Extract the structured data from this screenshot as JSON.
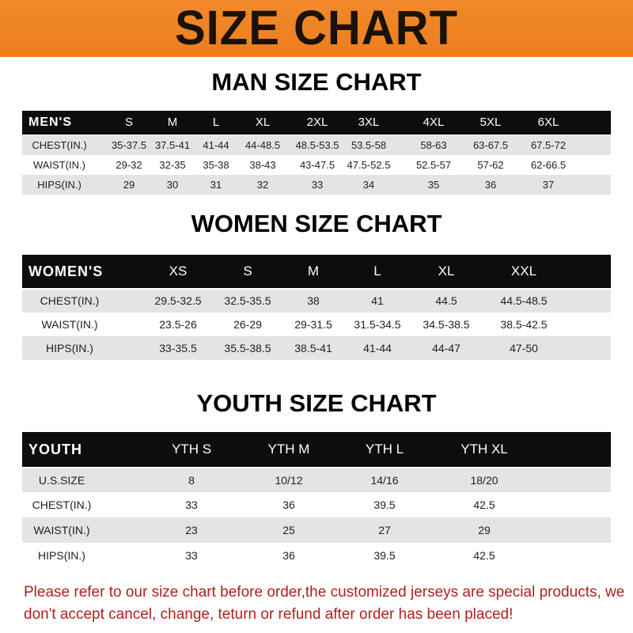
{
  "title": "SIZE CHART",
  "tables": [
    {
      "title": "MAN SIZE CHART",
      "header": [
        "MEN'S",
        "S",
        "M",
        "L",
        "XL",
        "2XL",
        "3XL",
        "4XL",
        "5XL",
        "6XL"
      ],
      "rows": [
        [
          "CHEST(IN.)",
          "35-37.5",
          "37.5-41",
          "41-44",
          "44-48.5",
          "48.5-53.5",
          "53.5-58",
          "58-63",
          "63-67.5",
          "67.5-72"
        ],
        [
          "WAIST(IN.)",
          "29-32",
          "32-35",
          "35-38",
          "38-43",
          "43-47.5",
          "47.5-52.5",
          "52.5-57",
          "57-62",
          "62-66.5"
        ],
        [
          "HIPS(IN.)",
          "29",
          "30",
          "31",
          "32",
          "33",
          "34",
          "35",
          "36",
          "37"
        ]
      ]
    },
    {
      "title": "WOMEN SIZE CHART",
      "header": [
        "WOMEN'S",
        "XS",
        "S",
        "M",
        "L",
        "XL",
        "XXL"
      ],
      "rows": [
        [
          "CHEST(IN.)",
          "29.5-32.5",
          "32.5-35.5",
          "38",
          "41",
          "44.5",
          "44.5-48.5"
        ],
        [
          "WAIST(IN.)",
          "23.5-26",
          "26-29",
          "29-31.5",
          "31.5-34.5",
          "34.5-38.5",
          "38.5-42.5"
        ],
        [
          "HIPS(IN.)",
          "33-35.5",
          "35.5-38.5",
          "38.5-41",
          "41-44",
          "44-47",
          "47-50"
        ]
      ]
    },
    {
      "title": "YOUTH SIZE CHART",
      "header": [
        "YOUTH",
        "YTH S",
        "YTH M",
        "YTH L",
        "YTH XL"
      ],
      "rows": [
        [
          "U.S.SIZE",
          "8",
          "10/12",
          "14/16",
          "18/20"
        ],
        [
          "CHEST(IN.)",
          "33",
          "36",
          "39.5",
          "42.5"
        ],
        [
          "WAIST(IN.)",
          "23",
          "25",
          "27",
          "29"
        ],
        [
          "HIPS(IN.)",
          "33",
          "36",
          "39.5",
          "42.5"
        ]
      ]
    }
  ],
  "note": "Please refer to our size chart before order,the customized jerseys are special products, we don't accept cancel, change, teturn or refund after order has been placed!",
  "colors": {
    "banner": "#ee7d1c",
    "header_row": "#0f0c0c",
    "note": "#b02020"
  }
}
